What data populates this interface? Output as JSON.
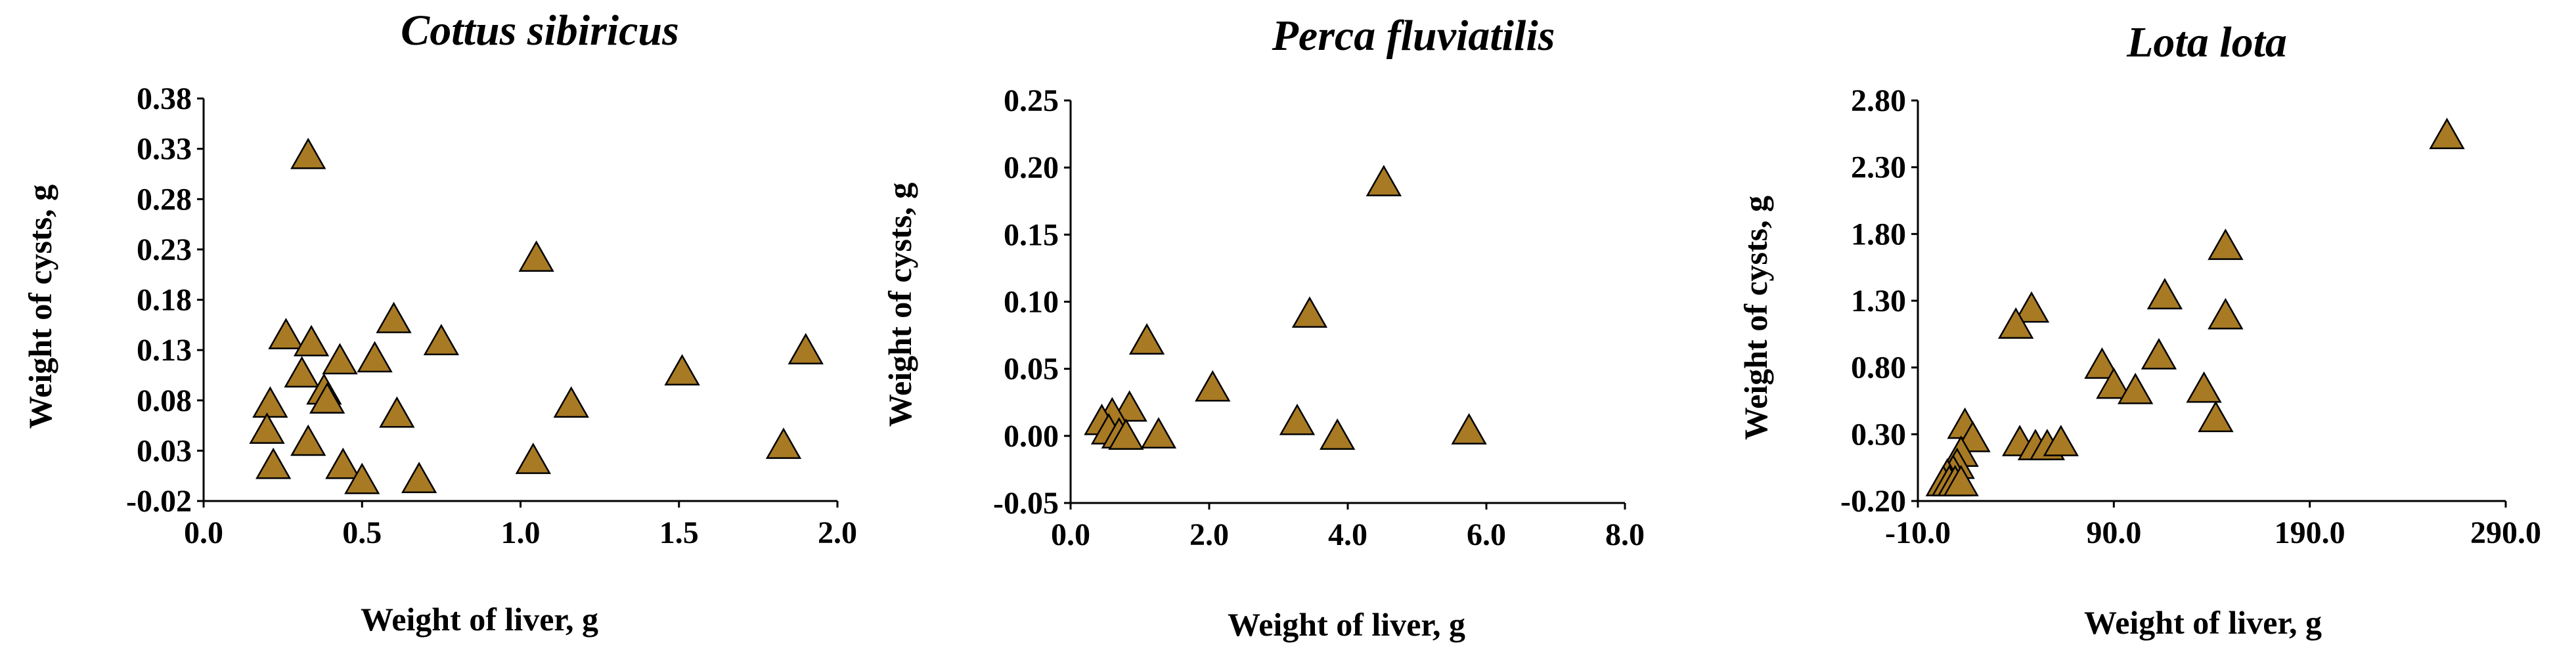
{
  "colors": {
    "marker": "#a87a24",
    "axis": "#000000"
  },
  "chart_data": [
    {
      "type": "scatter",
      "title": "Cottus sibiricus",
      "xlabel": "Weight of liver, g",
      "ylabel": "Weight of cysts, g",
      "xlim": [
        0.0,
        2.0
      ],
      "ylim": [
        -0.02,
        0.38
      ],
      "x_ticks": [
        0.0,
        0.5,
        1.0,
        1.5,
        2.0
      ],
      "x_tick_labels": [
        "0.0",
        "0.5",
        "1.0",
        "1.5",
        "2.0"
      ],
      "y_ticks": [
        -0.02,
        0.03,
        0.08,
        0.13,
        0.18,
        0.23,
        0.28,
        0.33,
        0.38
      ],
      "y_tick_labels": [
        "-0.02",
        "0.03",
        "0.08",
        "0.13",
        "0.18",
        "0.23",
        "0.28",
        "0.33",
        "0.38"
      ],
      "points": [
        {
          "x": 0.33,
          "y": 0.325
        },
        {
          "x": 1.05,
          "y": 0.223
        },
        {
          "x": 0.6,
          "y": 0.162
        },
        {
          "x": 0.75,
          "y": 0.14
        },
        {
          "x": 0.26,
          "y": 0.146
        },
        {
          "x": 0.34,
          "y": 0.139
        },
        {
          "x": 0.43,
          "y": 0.121
        },
        {
          "x": 0.54,
          "y": 0.123
        },
        {
          "x": 1.9,
          "y": 0.131
        },
        {
          "x": 1.51,
          "y": 0.11
        },
        {
          "x": 0.31,
          "y": 0.108
        },
        {
          "x": 0.38,
          "y": 0.091
        },
        {
          "x": 0.39,
          "y": 0.082
        },
        {
          "x": 0.21,
          "y": 0.078
        },
        {
          "x": 0.61,
          "y": 0.068
        },
        {
          "x": 1.16,
          "y": 0.078
        },
        {
          "x": 0.2,
          "y": 0.052
        },
        {
          "x": 0.33,
          "y": 0.04
        },
        {
          "x": 1.83,
          "y": 0.037
        },
        {
          "x": 1.04,
          "y": 0.022
        },
        {
          "x": 0.22,
          "y": 0.017
        },
        {
          "x": 0.44,
          "y": 0.017
        },
        {
          "x": 0.5,
          "y": 0.002
        },
        {
          "x": 0.68,
          "y": 0.003
        }
      ]
    },
    {
      "type": "scatter",
      "title": "Perca  fluviatilis",
      "xlabel": "Weight of liver, g",
      "ylabel": "Weight of cysts, g",
      "xlim": [
        0.0,
        8.0
      ],
      "ylim": [
        -0.05,
        0.25
      ],
      "x_ticks": [
        0.0,
        2.0,
        4.0,
        6.0,
        8.0
      ],
      "x_tick_labels": [
        "0.0",
        "2.0",
        "4.0",
        "6.0",
        "8.0"
      ],
      "y_ticks": [
        -0.05,
        0.0,
        0.05,
        0.1,
        0.15,
        0.2,
        0.25
      ],
      "y_tick_labels": [
        "-0.05",
        "0.00",
        "0.05",
        "0.10",
        "0.15",
        "0.20",
        "0.25"
      ],
      "points": [
        {
          "x": 4.52,
          "y": 0.19
        },
        {
          "x": 3.45,
          "y": 0.092
        },
        {
          "x": 1.1,
          "y": 0.072
        },
        {
          "x": 2.05,
          "y": 0.037
        },
        {
          "x": 0.85,
          "y": 0.022
        },
        {
          "x": 0.6,
          "y": 0.017
        },
        {
          "x": 0.45,
          "y": 0.012
        },
        {
          "x": 3.27,
          "y": 0.012
        },
        {
          "x": 0.55,
          "y": 0.005
        },
        {
          "x": 0.7,
          "y": 0.002
        },
        {
          "x": 0.8,
          "y": 0.001
        },
        {
          "x": 1.27,
          "y": 0.002
        },
        {
          "x": 3.85,
          "y": 0.001
        },
        {
          "x": 5.75,
          "y": 0.005
        }
      ]
    },
    {
      "type": "scatter",
      "title": "Lota lota",
      "xlabel": "Weight of liver, g",
      "ylabel": "Weight of cysts, g",
      "xlim": [
        -10.0,
        290.0
      ],
      "ylim": [
        -0.2,
        2.8
      ],
      "x_ticks": [
        -10.0,
        90.0,
        190.0,
        290.0
      ],
      "x_tick_labels": [
        "-10.0",
        "90.0",
        "190.0",
        "290.0"
      ],
      "y_ticks": [
        -0.2,
        0.3,
        0.8,
        1.3,
        1.8,
        2.3,
        2.8
      ],
      "y_tick_labels": [
        "-0.20",
        "0.30",
        "0.80",
        "1.30",
        "1.80",
        "2.30",
        "2.80"
      ],
      "points": [
        {
          "x": 260.0,
          "y": 2.55
        },
        {
          "x": 147.0,
          "y": 1.72
        },
        {
          "x": 116.0,
          "y": 1.35
        },
        {
          "x": 147.0,
          "y": 1.2
        },
        {
          "x": 48.0,
          "y": 1.25
        },
        {
          "x": 40.0,
          "y": 1.13
        },
        {
          "x": 113.0,
          "y": 0.9
        },
        {
          "x": 84.0,
          "y": 0.83
        },
        {
          "x": 90.0,
          "y": 0.68
        },
        {
          "x": 101.0,
          "y": 0.64
        },
        {
          "x": 136.0,
          "y": 0.65
        },
        {
          "x": 142.0,
          "y": 0.43
        },
        {
          "x": 14.0,
          "y": 0.38
        },
        {
          "x": 18.0,
          "y": 0.28
        },
        {
          "x": 42.0,
          "y": 0.25
        },
        {
          "x": 50.0,
          "y": 0.22
        },
        {
          "x": 56.0,
          "y": 0.22
        },
        {
          "x": 63.0,
          "y": 0.25
        },
        {
          "x": 12.0,
          "y": 0.17
        },
        {
          "x": 10.0,
          "y": 0.08
        },
        {
          "x": 8.0,
          "y": 0.03
        },
        {
          "x": 5.0,
          "y": 0.0
        },
        {
          "x": 3.0,
          "y": -0.05
        },
        {
          "x": 6.0,
          "y": -0.05
        },
        {
          "x": 9.0,
          "y": -0.05
        },
        {
          "x": 12.0,
          "y": -0.05
        }
      ]
    }
  ]
}
